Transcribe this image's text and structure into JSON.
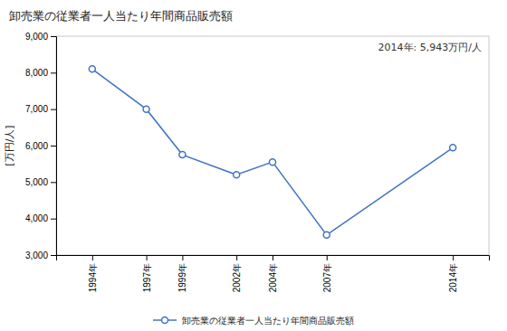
{
  "chart_data": {
    "type": "line",
    "title": "卸売業の従業者一人当たり年間商品販売額",
    "ylabel": "[万円/人]",
    "annotation": "2014年: 5,943万円/人",
    "x": [
      1994,
      1997,
      1999,
      2002,
      2004,
      2007,
      2014
    ],
    "series": [
      {
        "name": "卸売業の従業者一人当たり年間商品販売額",
        "color": "#4472C4",
        "marker": "circle",
        "values": [
          8100,
          7000,
          5750,
          5200,
          5550,
          3550,
          5943
        ]
      }
    ],
    "xlim": [
      1992,
      2016
    ],
    "xticks": [
      {
        "value": 1994,
        "label": "1994年"
      },
      {
        "value": 1997,
        "label": "1997年"
      },
      {
        "value": 1999,
        "label": "1999年"
      },
      {
        "value": 2002,
        "label": "2002年"
      },
      {
        "value": 2004,
        "label": "2004年"
      },
      {
        "value": 2007,
        "label": "2007年"
      },
      {
        "value": 2014,
        "label": "2014年"
      }
    ],
    "ylim": [
      3000,
      9000
    ],
    "yticks": [
      {
        "value": 3000,
        "label": "3,000"
      },
      {
        "value": 4000,
        "label": "4,000"
      },
      {
        "value": 5000,
        "label": "5,000"
      },
      {
        "value": 6000,
        "label": "6,000"
      },
      {
        "value": 7000,
        "label": "7,000"
      },
      {
        "value": 8000,
        "label": "8,000"
      },
      {
        "value": 9000,
        "label": "9,000"
      }
    ],
    "grid": false,
    "legend": "bottom"
  }
}
